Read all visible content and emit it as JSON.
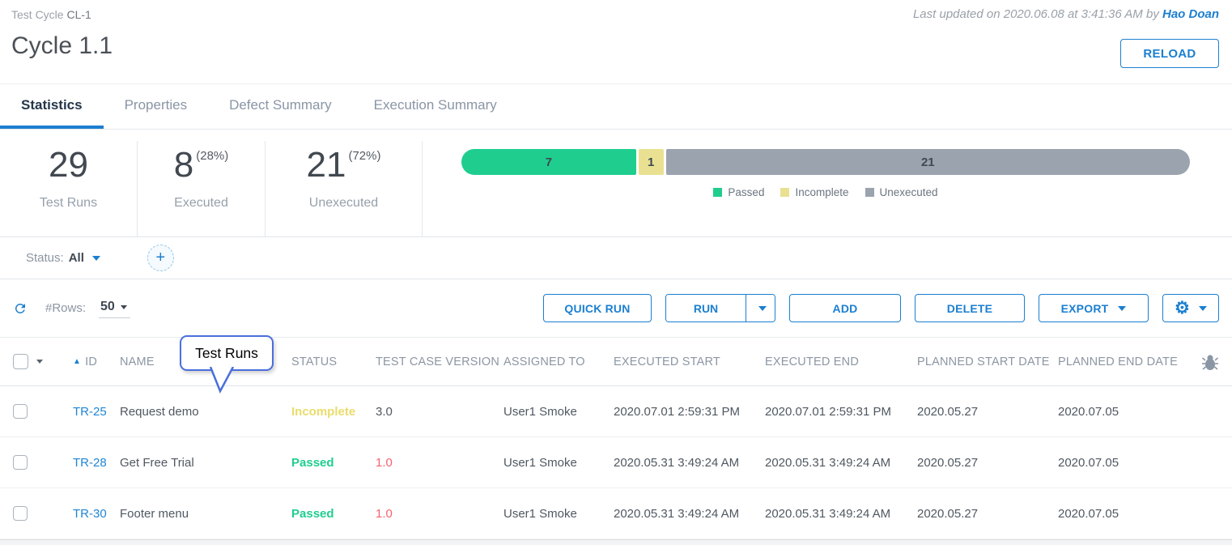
{
  "header": {
    "breadcrumb_type": "Test Cycle ",
    "breadcrumb_id": "CL-1",
    "last_updated_prefix": "Last updated on 2020.06.08 at 3:41:36 AM by ",
    "last_updated_user": "Hao Doan",
    "title": "Cycle 1.1",
    "reload_label": "RELOAD"
  },
  "tabs": [
    {
      "label": "Statistics"
    },
    {
      "label": "Properties"
    },
    {
      "label": "Defect Summary"
    },
    {
      "label": "Execution Summary"
    }
  ],
  "stats": [
    {
      "value": "29",
      "percent": "",
      "label": "Test Runs"
    },
    {
      "value": "8",
      "percent": "(28%)",
      "label": "Executed"
    },
    {
      "value": "21",
      "percent": "(72%)",
      "label": "Unexecuted"
    }
  ],
  "progress_bar": {
    "total": 29,
    "segments": [
      {
        "label": "Passed",
        "value": 7,
        "color": "#1fce8f"
      },
      {
        "label": "Incomplete",
        "value": 1,
        "color": "#e9e191"
      },
      {
        "label": "Unexecuted",
        "value": 21,
        "color": "#9aa3ae"
      }
    ]
  },
  "filter": {
    "status_label": "Status:",
    "status_value": "All",
    "add_button_glyph": "+"
  },
  "toolbar": {
    "rows_label": "#Rows:",
    "rows_value": "50",
    "quick_run_label": "QUICK RUN",
    "run_label": "RUN",
    "add_label": "ADD",
    "delete_label": "DELETE",
    "export_label": "EXPORT",
    "gear_glyph": "⚙"
  },
  "tooltip": {
    "text": "Test Runs"
  },
  "icons": {
    "sort_ascending": "▲"
  },
  "table": {
    "columns": {
      "id": "ID",
      "name": "NAME",
      "status": "STATUS",
      "version": "TEST CASE VERSION",
      "assigned": "ASSIGNED TO",
      "exec_start": "EXECUTED START",
      "exec_end": "EXECUTED END",
      "planned_start": "PLANNED START DATE",
      "planned_end": "PLANNED END DATE"
    },
    "rows": [
      {
        "id": "TR-25",
        "name": "Request demo",
        "status": "Incomplete",
        "status_color": "#e9dc6b",
        "version": "3.0",
        "version_color": "#4f5861",
        "assigned_to": "User1 Smoke",
        "executed_start": "2020.07.01 2:59:31 PM",
        "executed_end": "2020.07.01 2:59:31 PM",
        "planned_start": "2020.05.27",
        "planned_end": "2020.07.05"
      },
      {
        "id": "TR-28",
        "name": "Get Free Trial",
        "status": "Passed",
        "status_color": "#1fce8f",
        "version": "1.0",
        "version_color": "#f5626d",
        "assigned_to": "User1 Smoke",
        "executed_start": "2020.05.31 3:49:24 AM",
        "executed_end": "2020.05.31 3:49:24 AM",
        "planned_start": "2020.05.27",
        "planned_end": "2020.07.05"
      },
      {
        "id": "TR-30",
        "name": "Footer menu",
        "status": "Passed",
        "status_color": "#1fce8f",
        "version": "1.0",
        "version_color": "#f5626d",
        "assigned_to": "User1 Smoke",
        "executed_start": "2020.05.31 3:49:24 AM",
        "executed_end": "2020.05.31 3:49:24 AM",
        "planned_start": "2020.05.27",
        "planned_end": "2020.07.05"
      }
    ]
  },
  "colors": {
    "accent_blue": "#1b7fd0",
    "passed_green": "#1fce8f",
    "incomplete_yellow": "#e9e191",
    "unexecuted_gray": "#9aa3ae",
    "version_red": "#f5626d",
    "active_tab_text": "#24364a"
  }
}
